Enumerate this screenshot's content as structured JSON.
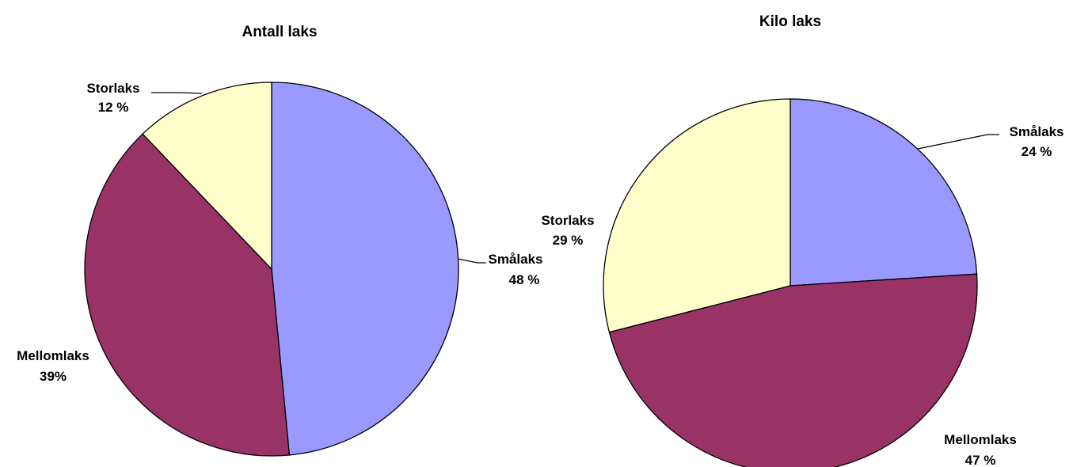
{
  "chart_data": [
    {
      "type": "pie",
      "title": "Antall laks",
      "slices": [
        {
          "name": "Smålaks",
          "value": 48,
          "label_name": "Smålaks",
          "label_value": "48 %",
          "color": "#9999FF"
        },
        {
          "name": "Mellomlaks",
          "value": 39,
          "label_name": "Mellomlaks",
          "label_value": "39%",
          "color": "#993366"
        },
        {
          "name": "Storlaks",
          "value": 12,
          "label_name": "Storlaks",
          "label_value": "12 %",
          "color": "#FFFFCC"
        }
      ]
    },
    {
      "type": "pie",
      "title": "Kilo laks",
      "slices": [
        {
          "name": "Smålaks",
          "value": 24,
          "label_name": "Smålaks",
          "label_value": "24 %",
          "color": "#9999FF"
        },
        {
          "name": "Mellomlaks",
          "value": 47,
          "label_name": "Mellomlaks",
          "label_value": "47 %",
          "color": "#993366"
        },
        {
          "name": "Storlaks",
          "value": 29,
          "label_name": "Storlaks",
          "label_value": "29 %",
          "color": "#FFFFCC"
        }
      ]
    }
  ]
}
